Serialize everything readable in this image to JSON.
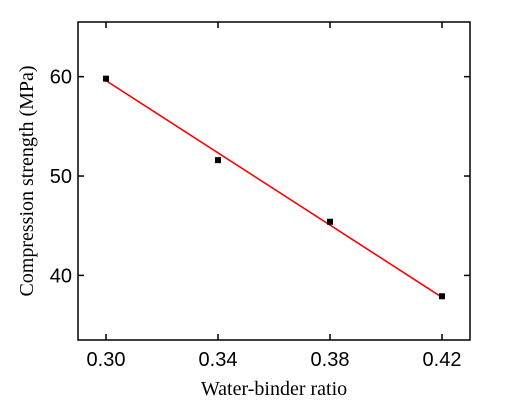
{
  "chart_data": {
    "type": "scatter",
    "xlabel": "Water-binder ratio",
    "ylabel": "Compression strength (MPa)",
    "xlim": [
      0.29,
      0.43
    ],
    "ylim": [
      33.5,
      65.5
    ],
    "x_ticks": [
      "0.30",
      "0.34",
      "0.38",
      "0.42"
    ],
    "y_ticks": [
      "40",
      "50",
      "60"
    ],
    "grid": false,
    "series": [
      {
        "marker": "square",
        "color": "#000000",
        "points": [
          {
            "x": 0.3,
            "y": 59.8
          },
          {
            "x": 0.34,
            "y": 51.6
          },
          {
            "x": 0.38,
            "y": 45.4
          },
          {
            "x": 0.42,
            "y": 37.9
          }
        ]
      }
    ],
    "fit_line": {
      "color": "#ff0000",
      "from": {
        "x": 0.3,
        "y": 59.6
      },
      "to": {
        "x": 0.42,
        "y": 37.8
      }
    }
  }
}
